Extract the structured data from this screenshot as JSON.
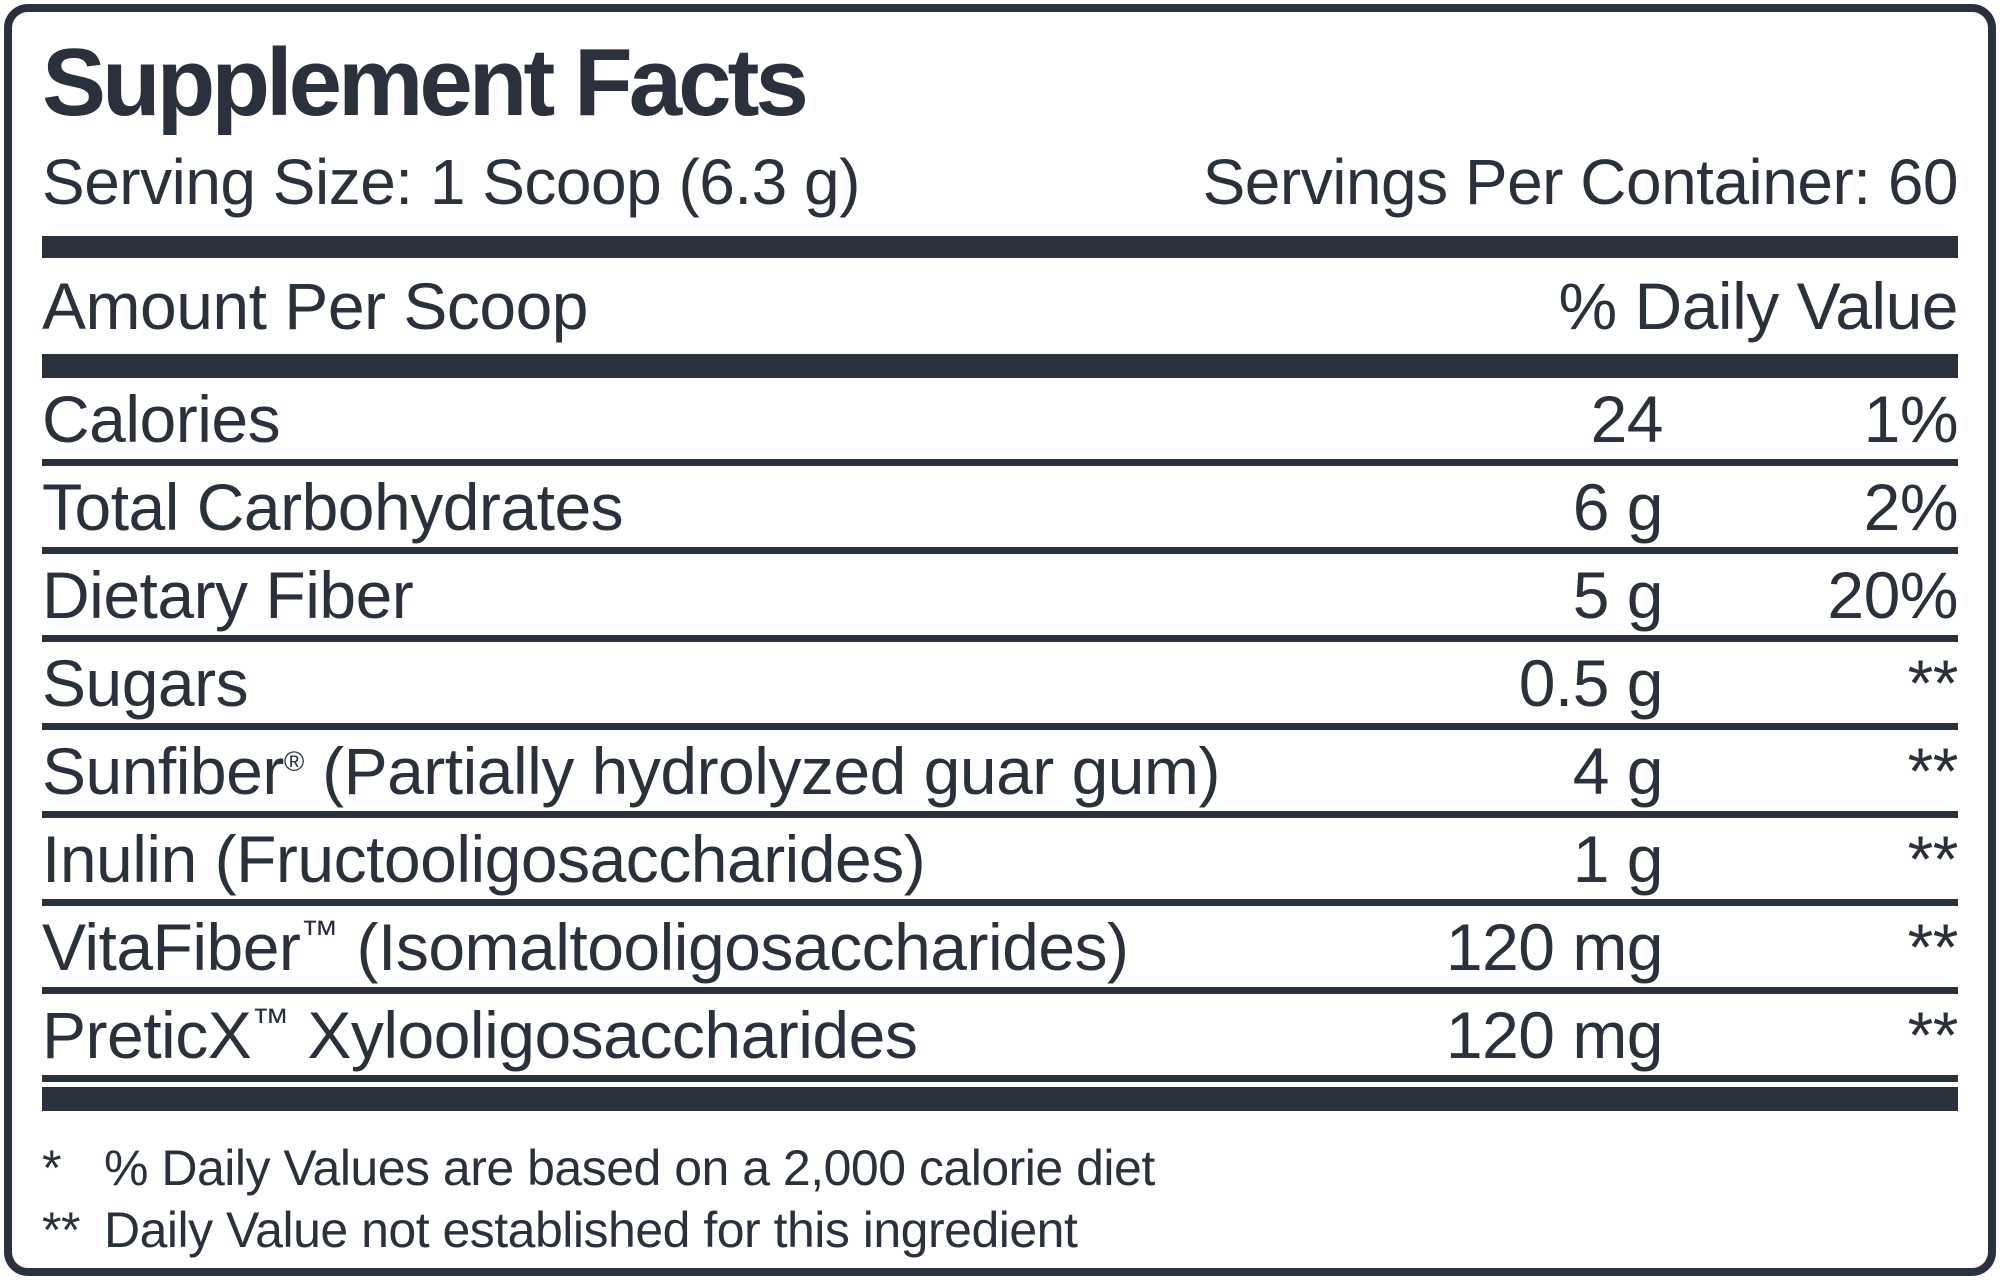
{
  "colors": {
    "ink": "#2b313c",
    "background": "#ffffff"
  },
  "header": {
    "title": "Supplement Facts",
    "serving_size": "Serving Size: 1 Scoop (6.3 g)",
    "servings_per_container": "Servings Per Container: 60"
  },
  "columns": {
    "amount_header": "Amount Per Scoop",
    "dv_header": "% Daily Value"
  },
  "rows": [
    {
      "label": "Calories",
      "sup": "",
      "label2": "",
      "amount": "24",
      "dv": "1%"
    },
    {
      "label": "Total Carbohydrates",
      "sup": "",
      "label2": "",
      "amount": "6 g",
      "dv": "2%"
    },
    {
      "label": "Dietary Fiber",
      "sup": "",
      "label2": "",
      "amount": "5 g",
      "dv": "20%"
    },
    {
      "label": "Sugars",
      "sup": "",
      "label2": "",
      "amount": "0.5 g",
      "dv": "**"
    },
    {
      "label": "Sunfiber",
      "sup": "®",
      "label2": " (Partially hydrolyzed guar gum)",
      "amount": "4 g",
      "dv": "**"
    },
    {
      "label": "Inulin (Fructooligosaccharides)",
      "sup": "",
      "label2": "",
      "amount": "1 g",
      "dv": "**"
    },
    {
      "label": "VitaFiber",
      "sup": "™",
      "label2": " (Isomaltooligosaccharides)",
      "amount": "120 mg",
      "dv": "**"
    },
    {
      "label": "PreticX",
      "sup": "™",
      "label2": " Xylooligosaccharides",
      "amount": "120 mg",
      "dv": "**"
    }
  ],
  "footnotes": [
    {
      "marker": "*",
      "text": "% Daily Values are based on a 2,000 calorie diet"
    },
    {
      "marker": "**",
      "text": "Daily Value not established for this ingredient"
    }
  ]
}
